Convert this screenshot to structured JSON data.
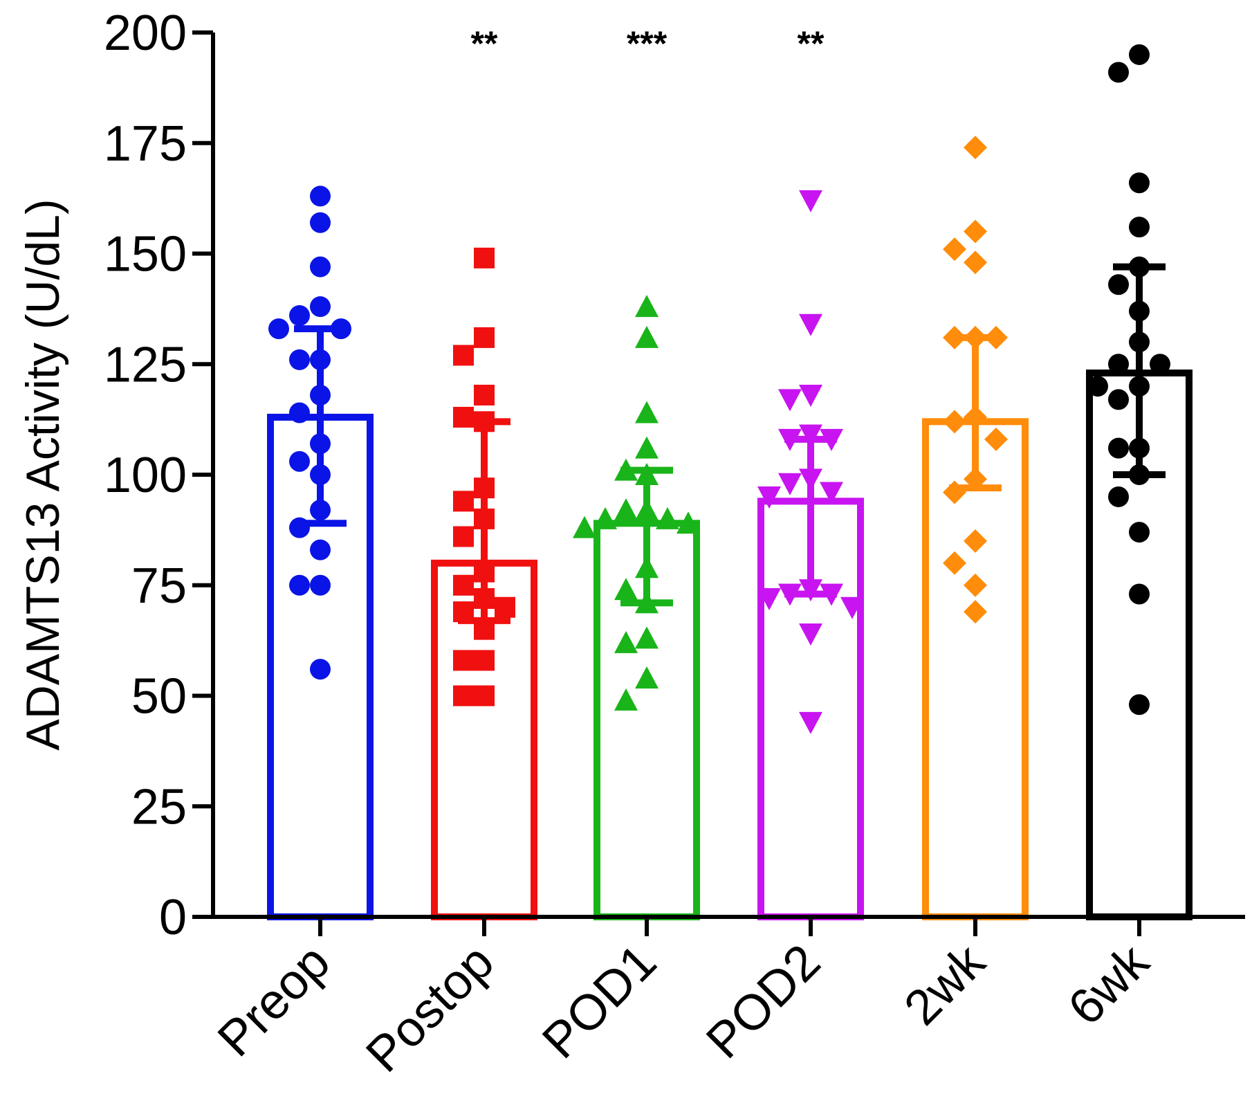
{
  "chart_data": {
    "type": "bar",
    "title": "",
    "xlabel": "",
    "ylabel": "ADAMTS13 Activity (U/dL)",
    "ylim": [
      0,
      200
    ],
    "yticks": [
      0,
      25,
      50,
      75,
      100,
      125,
      150,
      175,
      200
    ],
    "ytick_labels": [
      "0",
      "25",
      "50",
      "75",
      "100",
      "125",
      "150",
      "175",
      "200"
    ],
    "categories": [
      "Preop",
      "Postop",
      "POD1",
      "POD2",
      "2wk",
      "6wk"
    ],
    "series": [
      {
        "name": "Preop",
        "color": "#0a14e6",
        "marker": "circle",
        "mean": 113,
        "sd_low": 89,
        "sd_high": 133,
        "significance": "",
        "points": [
          163,
          157,
          147,
          138,
          136,
          133,
          133,
          126,
          126,
          118,
          114,
          107,
          103,
          100,
          92,
          88,
          83,
          75,
          75,
          56
        ]
      },
      {
        "name": "Postop",
        "color": "#f01010",
        "marker": "square",
        "mean": 80,
        "sd_low": 67,
        "sd_high": 112,
        "significance": "**",
        "points": [
          149,
          131,
          127,
          118,
          113,
          112,
          97,
          94,
          90,
          86,
          78,
          75,
          72,
          70,
          69,
          65,
          58,
          58,
          50,
          50
        ]
      },
      {
        "name": "POD1",
        "color": "#19b419",
        "marker": "triangle-up",
        "mean": 89,
        "sd_low": 71,
        "sd_high": 101,
        "significance": "***",
        "points": [
          138,
          131,
          114,
          106,
          101,
          100,
          92,
          92,
          90,
          90,
          89,
          88,
          79,
          74,
          71,
          63,
          62,
          54,
          49
        ]
      },
      {
        "name": "POD2",
        "color": "#c814f0",
        "marker": "triangle-down",
        "mean": 94,
        "sd_low": 73,
        "sd_high": 108,
        "significance": "**",
        "points": [
          162,
          134,
          118,
          117,
          109,
          108,
          108,
          99,
          98,
          96,
          95,
          74,
          73,
          73,
          72,
          70,
          64,
          44
        ]
      },
      {
        "name": "2wk",
        "color": "#ff8c0a",
        "marker": "diamond",
        "mean": 112,
        "sd_low": 97,
        "sd_high": 131,
        "significance": "",
        "points": [
          174,
          155,
          151,
          148,
          131,
          131,
          131,
          113,
          112,
          108,
          99,
          96,
          85,
          80,
          75,
          69
        ]
      },
      {
        "name": "6wk",
        "color": "#000000",
        "marker": "circle",
        "mean": 123,
        "sd_low": 100,
        "sd_high": 147,
        "significance": "",
        "points": [
          195,
          191,
          166,
          156,
          147,
          143,
          137,
          130,
          125,
          125,
          120,
          120,
          117,
          106,
          106,
          100,
          95,
          87,
          73,
          48
        ]
      }
    ]
  }
}
